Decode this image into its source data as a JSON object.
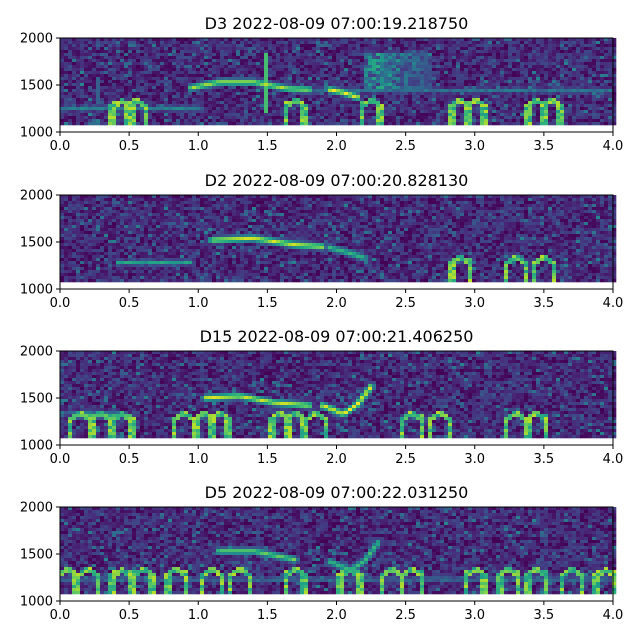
{
  "chart_data": [
    {
      "type": "heatmap",
      "title": "D3 2022-08-09 07:00:19.218750",
      "xlim": [
        0.0,
        4.0
      ],
      "ylim": [
        1000,
        2000
      ],
      "x_ticks": [
        "0.0",
        "0.5",
        "1.0",
        "1.5",
        "2.0",
        "2.5",
        "3.0",
        "3.5",
        "4.0"
      ],
      "y_ticks": [
        "1000",
        "1500",
        "2000"
      ],
      "data_y_range": [
        1100,
        2000
      ],
      "colormap": "viridis",
      "features": {
        "calls": [
          {
            "points": [
              [
                0.95,
                1470
              ],
              [
                1.15,
                1530
              ],
              [
                1.4,
                1530
              ],
              [
                1.65,
                1460
              ],
              [
                1.8,
                1450
              ]
            ],
            "intensity": 0.8
          },
          {
            "points": [
              [
                1.95,
                1450
              ],
              [
                2.05,
                1420
              ],
              [
                2.15,
                1370
              ]
            ],
            "intensity": 0.9
          }
        ],
        "hlines": [
          {
            "y": 1250,
            "x0": 0.0,
            "x1": 1.0,
            "intensity": 0.35
          },
          {
            "y": 1440,
            "x0": 1.8,
            "x1": 4.0,
            "intensity": 0.3
          }
        ],
        "bumps": [
          0.45,
          0.55,
          1.7,
          2.25,
          2.9,
          3.0,
          3.45,
          3.55
        ],
        "vlines": [
          {
            "x": 1.5,
            "y0": 1200,
            "y1": 1850,
            "intensity": 0.7
          },
          {
            "x": 0.27,
            "y0": 1300,
            "y1": 1600,
            "intensity": 0.3
          }
        ],
        "blob": {
          "x0": 2.2,
          "x1": 2.7,
          "y0": 1450,
          "y1": 1850,
          "intensity": 0.5
        }
      }
    },
    {
      "type": "heatmap",
      "title": "D2 2022-08-09 07:00:20.828130",
      "xlim": [
        0.0,
        4.0
      ],
      "ylim": [
        1000,
        2000
      ],
      "x_ticks": [
        "0.0",
        "0.5",
        "1.0",
        "1.5",
        "2.0",
        "2.5",
        "3.0",
        "3.5",
        "4.0"
      ],
      "y_ticks": [
        "1000",
        "1500",
        "2000"
      ],
      "data_y_range": [
        1100,
        2000
      ],
      "colormap": "viridis",
      "features": {
        "calls": [
          {
            "points": [
              [
                1.1,
                1520
              ],
              [
                1.4,
                1540
              ],
              [
                1.7,
                1470
              ],
              [
                1.9,
                1450
              ]
            ],
            "intensity": 0.85
          },
          {
            "points": [
              [
                1.95,
                1440
              ],
              [
                2.1,
                1380
              ],
              [
                2.2,
                1330
              ]
            ],
            "intensity": 0.6
          }
        ],
        "hlines": [
          {
            "y": 1280,
            "x0": 0.4,
            "x1": 0.95,
            "intensity": 0.5
          }
        ],
        "bumps": [
          2.9,
          3.3,
          3.5
        ],
        "vlines": [],
        "blob": null
      }
    },
    {
      "type": "heatmap",
      "title": "D15 2022-08-09 07:00:21.406250",
      "xlim": [
        0.0,
        4.0
      ],
      "ylim": [
        1000,
        2000
      ],
      "x_ticks": [
        "0.0",
        "0.5",
        "1.0",
        "1.5",
        "2.0",
        "2.5",
        "3.0",
        "3.5",
        "4.0"
      ],
      "y_ticks": [
        "1000",
        "1500",
        "2000"
      ],
      "data_y_range": [
        1100,
        2000
      ],
      "colormap": "viridis",
      "features": {
        "calls": [
          {
            "points": [
              [
                1.05,
                1500
              ],
              [
                1.3,
                1520
              ],
              [
                1.55,
                1450
              ],
              [
                1.8,
                1420
              ]
            ],
            "intensity": 0.85
          },
          {
            "points": [
              [
                1.9,
                1420
              ],
              [
                2.05,
                1330
              ],
              [
                2.15,
                1430
              ],
              [
                2.25,
                1620
              ]
            ],
            "intensity": 0.9
          }
        ],
        "hlines": [
          {
            "y": 1340,
            "x0": 0.0,
            "x1": 0.4,
            "intensity": 0.3
          }
        ],
        "bumps": [
          0.15,
          0.3,
          0.45,
          0.9,
          1.05,
          1.15,
          1.6,
          1.7,
          1.85,
          2.55,
          2.75,
          3.3,
          3.45
        ],
        "vlines": [],
        "blob": null
      }
    },
    {
      "type": "heatmap",
      "title": "D5 2022-08-09 07:00:22.031250",
      "xlim": [
        0.0,
        4.0
      ],
      "ylim": [
        1000,
        2000
      ],
      "x_ticks": [
        "0.0",
        "0.5",
        "1.0",
        "1.5",
        "2.0",
        "2.5",
        "3.0",
        "3.5",
        "4.0"
      ],
      "y_ticks": [
        "1000",
        "1500",
        "2000"
      ],
      "data_y_range": [
        1100,
        2000
      ],
      "colormap": "viridis",
      "features": {
        "calls": [
          {
            "points": [
              [
                1.15,
                1530
              ],
              [
                1.4,
                1530
              ],
              [
                1.7,
                1440
              ]
            ],
            "intensity": 0.7
          },
          {
            "points": [
              [
                1.95,
                1420
              ],
              [
                2.1,
                1330
              ],
              [
                2.2,
                1420
              ],
              [
                2.3,
                1620
              ]
            ],
            "intensity": 0.6
          }
        ],
        "hlines": [
          {
            "y": 1230,
            "x0": 0.0,
            "x1": 4.0,
            "intensity": 0.3
          }
        ],
        "bumps": [
          0.05,
          0.2,
          0.45,
          0.6,
          0.85,
          1.1,
          1.3,
          1.7,
          2.1,
          2.4,
          2.55,
          3.0,
          3.25,
          3.45,
          3.7,
          3.95
        ],
        "vlines": [],
        "blob": null
      }
    }
  ]
}
